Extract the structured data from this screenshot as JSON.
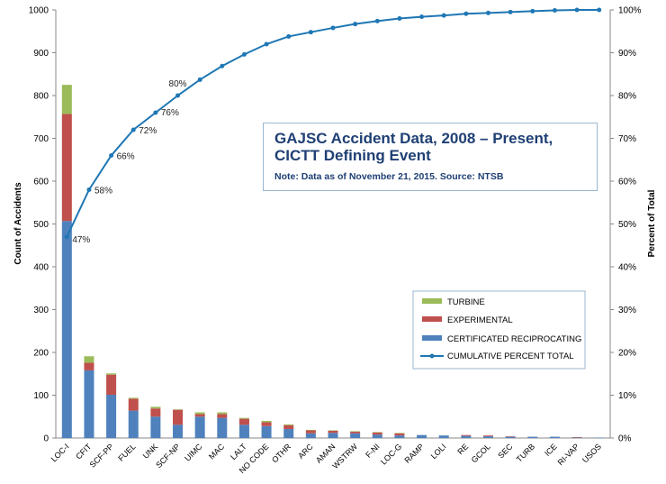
{
  "chart_data": {
    "type": "bar",
    "stacked": true,
    "title": "GAJSC Accident Data, 2008 – Present, CICTT Defining Event",
    "subtitle": "Note: Data as of November 21, 2015. Source: NTSB",
    "ylabel": "Count of Accidents",
    "y2label": "Percent of Total",
    "ylim": [
      0,
      1000
    ],
    "y2lim": [
      0,
      100
    ],
    "yticks": [
      "0",
      "100",
      "200",
      "300",
      "400",
      "500",
      "600",
      "700",
      "800",
      "900",
      "1000"
    ],
    "y2ticks": [
      "0%",
      "10%",
      "20%",
      "30%",
      "40%",
      "50%",
      "60%",
      "70%",
      "80%",
      "90%",
      "100%"
    ],
    "grid": false,
    "legend_position": "lower-right",
    "categories": [
      "LOC-I",
      "CFIT",
      "SCF-PP",
      "FUEL",
      "UNK",
      "SCF-NP",
      "UIMC",
      "MAC",
      "LALT",
      "NO CODE",
      "OTHR",
      "ARC",
      "AMAN",
      "WSTRW",
      "F-NI",
      "LOC-G",
      "RAMP",
      "LOLI",
      "RE",
      "GCOL",
      "SEC",
      "TURB",
      "ICE",
      "RI-VAP",
      "USOS"
    ],
    "series": [
      {
        "name": "TURBINE",
        "color": "#9bbb59",
        "values": [
          68,
          15,
          3,
          2,
          4,
          1,
          4,
          4,
          2,
          3,
          2,
          1,
          1,
          1,
          1,
          1,
          0,
          0,
          0,
          0,
          0,
          0,
          0,
          0,
          0
        ]
      },
      {
        "name": "EXPERIMENTAL",
        "color": "#c0504d",
        "values": [
          250,
          18,
          47,
          28,
          19,
          35,
          6,
          9,
          14,
          9,
          9,
          7,
          5,
          4,
          5,
          5,
          0,
          0,
          2,
          2,
          1,
          0,
          0,
          1,
          0
        ]
      },
      {
        "name": "CERTIFICATED RECIPROCATING",
        "color": "#4f81bd",
        "values": [
          507,
          158,
          101,
          64,
          50,
          31,
          50,
          47,
          31,
          28,
          21,
          11,
          12,
          11,
          8,
          6,
          7,
          6,
          5,
          4,
          3,
          3,
          3,
          1,
          1
        ]
      }
    ],
    "cumulative": {
      "name": "CUMULATIVE PERCENT TOTAL",
      "color": "#1f77b4",
      "values": [
        47,
        58,
        66,
        72,
        76,
        80,
        83.7,
        86.9,
        89.6,
        92.0,
        93.8,
        94.8,
        95.8,
        96.7,
        97.4,
        98.0,
        98.4,
        98.7,
        99.1,
        99.3,
        99.5,
        99.7,
        99.9,
        100,
        100
      ],
      "labels": [
        "47%",
        "58%",
        "66%",
        "72%",
        "76%",
        "80%"
      ]
    }
  }
}
